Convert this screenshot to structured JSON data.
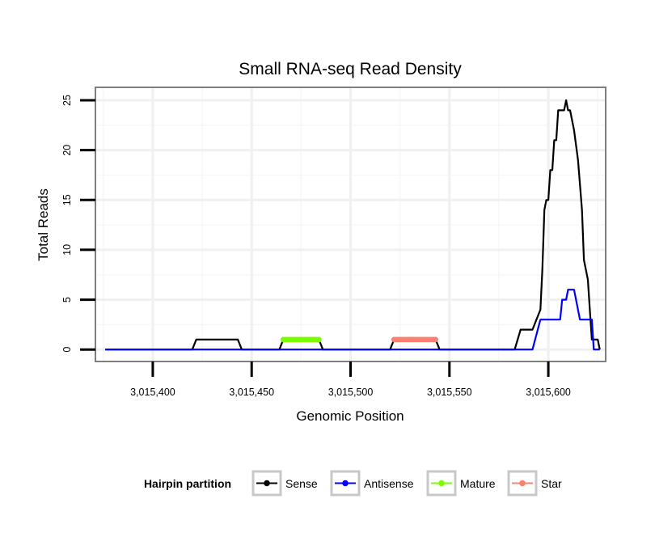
{
  "chart_data": {
    "type": "line",
    "title": "Small RNA-seq Read Density",
    "xlabel": "Genomic Position",
    "ylabel": "Total Reads",
    "xlim": [
      3015371,
      3015629
    ],
    "ylim": [
      -1.2,
      26.3
    ],
    "x_ticks": [
      3015400,
      3015450,
      3015500,
      3015550,
      3015600
    ],
    "x_tick_labels": [
      "3,015,400",
      "3,015,450",
      "3,015,500",
      "3,015,550",
      "3,015,600"
    ],
    "y_ticks": [
      0,
      5,
      10,
      15,
      20,
      25
    ],
    "y_tick_labels": [
      "0",
      "5",
      "10",
      "15",
      "20",
      "25"
    ],
    "grid": true,
    "legend": {
      "title": "Hairpin partition",
      "placement": "bottom",
      "entries": [
        {
          "label": "Sense",
          "color": "#000000"
        },
        {
          "label": "Antisense",
          "color": "#0000ff"
        },
        {
          "label": "Mature",
          "color": "#7cfc00"
        },
        {
          "label": "Star",
          "color": "#fa8072"
        }
      ]
    },
    "series": [
      {
        "name": "Sense",
        "color": "#000000",
        "points": [
          [
            3015376,
            0
          ],
          [
            3015420,
            0
          ],
          [
            3015422,
            1
          ],
          [
            3015443,
            1
          ],
          [
            3015445,
            0
          ],
          [
            3015464,
            0
          ],
          [
            3015466,
            1
          ],
          [
            3015484,
            1
          ],
          [
            3015486,
            0
          ],
          [
            3015520,
            0
          ],
          [
            3015522,
            1
          ],
          [
            3015543,
            1
          ],
          [
            3015545,
            0
          ],
          [
            3015583,
            0
          ],
          [
            3015586,
            2
          ],
          [
            3015592,
            2
          ],
          [
            3015594,
            3
          ],
          [
            3015596,
            4
          ],
          [
            3015597,
            8
          ],
          [
            3015598,
            14
          ],
          [
            3015599,
            15
          ],
          [
            3015600,
            15
          ],
          [
            3015601,
            18
          ],
          [
            3015602,
            18
          ],
          [
            3015603,
            21
          ],
          [
            3015604,
            21
          ],
          [
            3015605,
            24
          ],
          [
            3015608,
            24
          ],
          [
            3015609,
            25
          ],
          [
            3015610,
            24
          ],
          [
            3015611,
            24
          ],
          [
            3015613,
            22
          ],
          [
            3015615,
            19
          ],
          [
            3015617,
            14
          ],
          [
            3015618,
            9
          ],
          [
            3015620,
            7
          ],
          [
            3015621,
            4
          ],
          [
            3015622,
            1
          ],
          [
            3015624,
            1
          ],
          [
            3015625,
            1
          ],
          [
            3015626,
            0
          ]
        ]
      },
      {
        "name": "Antisense",
        "color": "#0000ff",
        "points": [
          [
            3015376,
            0
          ],
          [
            3015585,
            0
          ],
          [
            3015592,
            0
          ],
          [
            3015596,
            3
          ],
          [
            3015606,
            3
          ],
          [
            3015607,
            5
          ],
          [
            3015609,
            5
          ],
          [
            3015610,
            6
          ],
          [
            3015613,
            6
          ],
          [
            3015616,
            3
          ],
          [
            3015622,
            3
          ],
          [
            3015623,
            0
          ],
          [
            3015626,
            0
          ]
        ]
      },
      {
        "name": "Mature",
        "color": "#7cfc00",
        "points": [
          [
            3015466,
            1
          ],
          [
            3015484,
            1
          ]
        ]
      },
      {
        "name": "Star",
        "color": "#fa8072",
        "points": [
          [
            3015522,
            1
          ],
          [
            3015543,
            1
          ]
        ]
      }
    ]
  }
}
